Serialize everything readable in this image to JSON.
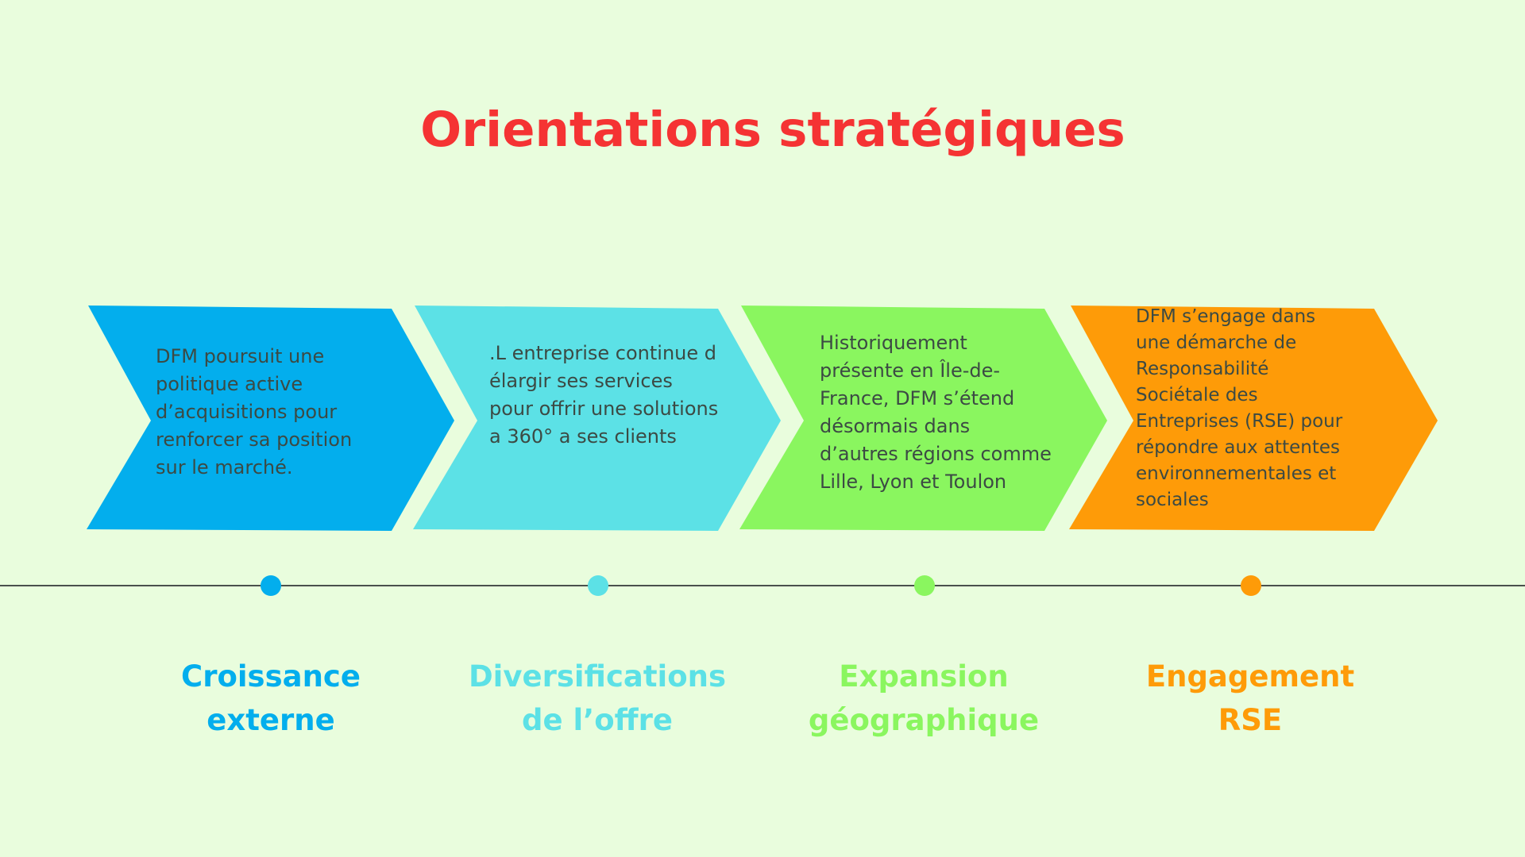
{
  "title": "Orientations stratégiques",
  "steps": [
    {
      "name": "croissance",
      "color": "#03aeed",
      "text": "DFM poursuit une\npolitique active\nd’acquisitions pour\nrenforcer sa position\nsur le marché.",
      "label": "Croissance\nexterne"
    },
    {
      "name": "diversification",
      "color": "#5ce1e6",
      "text": ".L entreprise continue d\nélargir ses services\npour offrir une solutions\na 360° a ses clients",
      "label": "Diversifications\nde l’offre"
    },
    {
      "name": "expansion",
      "color": "#8af65f",
      "text": "Historiquement\nprésente en Île-de-\nFrance, DFM s’étend\ndésormais dans\nd’autres régions comme\nLille, Lyon et Toulon",
      "label": "Expansion\ngéographique"
    },
    {
      "name": "engagement",
      "color": "#fe9b08",
      "text": " DFM s’engage dans\nune démarche de\nResponsabilité\nSociétale des\nEntreprises (RSE) pour\nrépondre aux attentes\nenvironnementales et\nsociales",
      "label": "Engagement\nRSE"
    }
  ],
  "timeline": {
    "line_color": "#4a4f4c"
  }
}
